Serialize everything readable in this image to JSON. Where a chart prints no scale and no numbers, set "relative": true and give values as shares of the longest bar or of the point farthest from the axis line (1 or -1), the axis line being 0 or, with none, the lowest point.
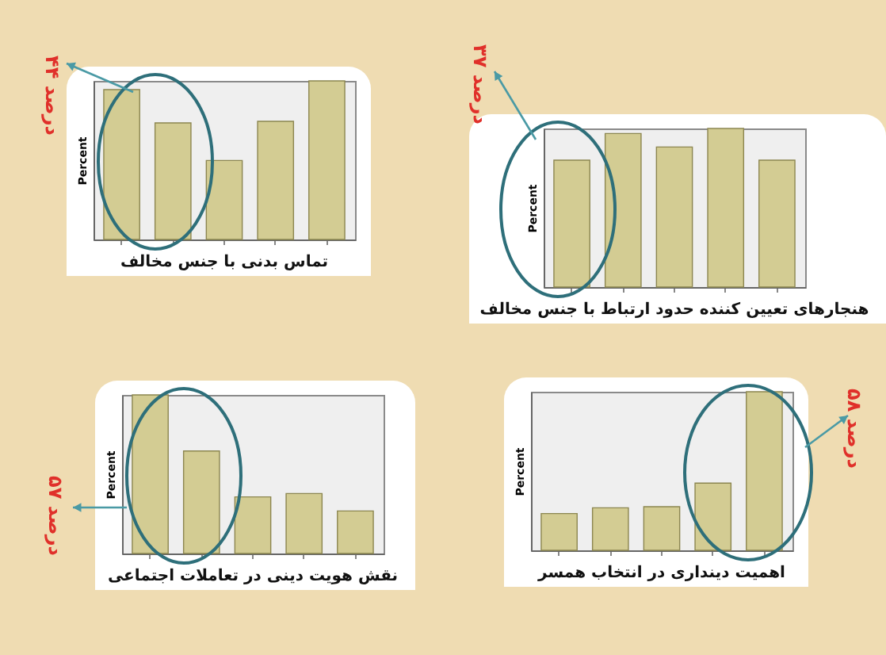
{
  "chart_data": [
    {
      "type": "bar",
      "title": "تماس بدنی با جنس مخالف",
      "ylabel": "Percent",
      "relative": true,
      "categories": [
        null,
        null,
        null,
        null,
        null
      ],
      "color": "#d3cc93",
      "values": [
        0.945,
        0.735,
        0.498,
        0.745,
        1
      ],
      "annotations": [
        "۴۴ درصد"
      ]
    },
    {
      "type": "bar",
      "title": "هنجارهای تعیین کننده حدود ارتباط با جنس مخالف",
      "ylabel": "Percent",
      "relative": true,
      "categories": [
        null,
        null,
        null,
        null,
        null
      ],
      "color": "#d3cc93",
      "values": [
        0.8,
        0.968,
        0.883,
        1,
        0.8
      ],
      "annotations": [
        "۳۷ درصد"
      ]
    },
    {
      "type": "bar",
      "title": "نقش هویت دینی در تعاملات اجتماعی",
      "ylabel": "Percent",
      "relative": true,
      "categories": [
        null,
        null,
        null,
        null,
        null
      ],
      "color": "#d3cc93",
      "values": [
        1,
        0.646,
        0.357,
        0.378,
        0.268
      ],
      "annotations": [
        "۵۷ درصد"
      ]
    },
    {
      "type": "bar",
      "title": "اهمیت دینداری در انتخاب همسر",
      "ylabel": "Percent",
      "relative": true,
      "categories": [
        null,
        null,
        null,
        null,
        null
      ],
      "color": "#d3cc93",
      "values": [
        0.232,
        0.268,
        0.275,
        0.424,
        1
      ],
      "annotations": [
        "۵۸ درصد"
      ]
    }
  ]
}
